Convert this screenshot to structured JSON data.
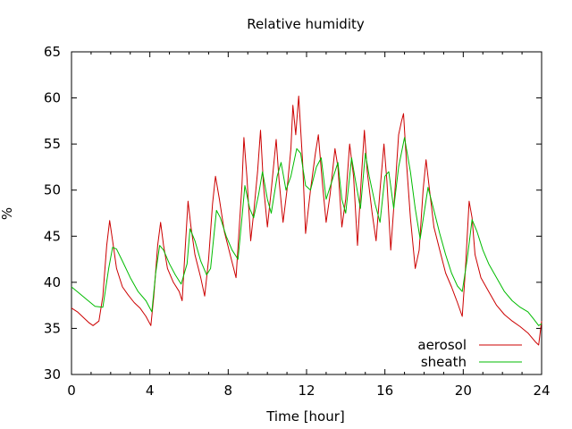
{
  "chart_data": {
    "type": "line",
    "title": "Relative humidity",
    "xlabel": "Time [hour]",
    "ylabel": "%",
    "xlim": [
      0,
      24
    ],
    "ylim": [
      30,
      65
    ],
    "xticks": [
      0,
      4,
      8,
      12,
      16,
      20,
      24
    ],
    "yticks": [
      30,
      35,
      40,
      45,
      50,
      55,
      60,
      65
    ],
    "grid": false,
    "legend_position": "bottom-right",
    "series": [
      {
        "name": "aerosol",
        "color": "#cc0000",
        "points": [
          [
            0,
            37.2
          ],
          [
            0.3,
            36.8
          ],
          [
            0.6,
            36.2
          ],
          [
            0.9,
            35.6
          ],
          [
            1.1,
            35.3
          ],
          [
            1.4,
            35.8
          ],
          [
            1.6,
            38.5
          ],
          [
            1.8,
            44.0
          ],
          [
            1.95,
            46.7
          ],
          [
            2.1,
            44.5
          ],
          [
            2.3,
            41.5
          ],
          [
            2.6,
            39.5
          ],
          [
            2.9,
            38.6
          ],
          [
            3.2,
            37.8
          ],
          [
            3.5,
            37.2
          ],
          [
            3.8,
            36.3
          ],
          [
            4.05,
            35.3
          ],
          [
            4.2,
            38.5
          ],
          [
            4.4,
            44.0
          ],
          [
            4.55,
            46.5
          ],
          [
            4.7,
            44.0
          ],
          [
            4.9,
            41.5
          ],
          [
            5.2,
            40.0
          ],
          [
            5.5,
            39.0
          ],
          [
            5.65,
            38.0
          ],
          [
            5.8,
            43.5
          ],
          [
            5.95,
            48.8
          ],
          [
            6.1,
            46.0
          ],
          [
            6.3,
            43.0
          ],
          [
            6.6,
            40.5
          ],
          [
            6.8,
            38.5
          ],
          [
            7.0,
            42.5
          ],
          [
            7.2,
            48.5
          ],
          [
            7.35,
            51.5
          ],
          [
            7.55,
            49.0
          ],
          [
            7.8,
            45.5
          ],
          [
            8.1,
            43.0
          ],
          [
            8.4,
            40.5
          ],
          [
            8.55,
            45.5
          ],
          [
            8.7,
            50.5
          ],
          [
            8.8,
            55.7
          ],
          [
            8.95,
            51.5
          ],
          [
            9.15,
            44.5
          ],
          [
            9.3,
            47.5
          ],
          [
            9.5,
            52.0
          ],
          [
            9.65,
            56.5
          ],
          [
            9.8,
            50.5
          ],
          [
            10.0,
            46.0
          ],
          [
            10.2,
            50.0
          ],
          [
            10.45,
            55.5
          ],
          [
            10.6,
            51.0
          ],
          [
            10.8,
            46.5
          ],
          [
            11.0,
            50.0
          ],
          [
            11.2,
            54.5
          ],
          [
            11.3,
            59.2
          ],
          [
            11.45,
            56.0
          ],
          [
            11.6,
            60.2
          ],
          [
            11.8,
            53.0
          ],
          [
            11.95,
            45.3
          ],
          [
            12.2,
            50.0
          ],
          [
            12.45,
            54.0
          ],
          [
            12.6,
            56.0
          ],
          [
            12.8,
            51.0
          ],
          [
            13.0,
            46.5
          ],
          [
            13.2,
            49.5
          ],
          [
            13.45,
            54.5
          ],
          [
            13.6,
            52.5
          ],
          [
            13.8,
            46.0
          ],
          [
            14.0,
            49.0
          ],
          [
            14.2,
            55.0
          ],
          [
            14.4,
            51.5
          ],
          [
            14.6,
            44.0
          ],
          [
            14.8,
            51.5
          ],
          [
            14.95,
            56.5
          ],
          [
            15.1,
            52.0
          ],
          [
            15.35,
            47.5
          ],
          [
            15.55,
            44.5
          ],
          [
            15.75,
            50.0
          ],
          [
            15.95,
            55.0
          ],
          [
            16.1,
            51.0
          ],
          [
            16.3,
            43.5
          ],
          [
            16.5,
            49.5
          ],
          [
            16.7,
            56.0
          ],
          [
            16.85,
            57.5
          ],
          [
            16.95,
            58.3
          ],
          [
            17.1,
            53.0
          ],
          [
            17.3,
            47.0
          ],
          [
            17.55,
            41.5
          ],
          [
            17.75,
            43.5
          ],
          [
            17.95,
            50.0
          ],
          [
            18.1,
            53.3
          ],
          [
            18.25,
            50.5
          ],
          [
            18.5,
            46.0
          ],
          [
            18.8,
            43.5
          ],
          [
            19.1,
            41.0
          ],
          [
            19.4,
            39.5
          ],
          [
            19.7,
            37.8
          ],
          [
            19.95,
            36.3
          ],
          [
            20.1,
            41.0
          ],
          [
            20.3,
            48.8
          ],
          [
            20.45,
            47.0
          ],
          [
            20.6,
            43.0
          ],
          [
            20.9,
            40.5
          ],
          [
            21.3,
            39.0
          ],
          [
            21.7,
            37.5
          ],
          [
            22.1,
            36.5
          ],
          [
            22.5,
            35.8
          ],
          [
            22.9,
            35.2
          ],
          [
            23.3,
            34.5
          ],
          [
            23.7,
            33.5
          ],
          [
            23.85,
            33.2
          ],
          [
            24,
            35.8
          ]
        ]
      },
      {
        "name": "sheath",
        "color": "#00bb00",
        "points": [
          [
            0,
            39.5
          ],
          [
            0.4,
            38.8
          ],
          [
            0.8,
            38.1
          ],
          [
            1.2,
            37.4
          ],
          [
            1.6,
            37.3
          ],
          [
            1.9,
            41.5
          ],
          [
            2.1,
            43.8
          ],
          [
            2.3,
            43.6
          ],
          [
            2.6,
            42.3
          ],
          [
            3.0,
            40.5
          ],
          [
            3.4,
            39.0
          ],
          [
            3.8,
            38.0
          ],
          [
            4.1,
            36.8
          ],
          [
            4.3,
            41.0
          ],
          [
            4.5,
            44.0
          ],
          [
            4.7,
            43.5
          ],
          [
            5.0,
            42.0
          ],
          [
            5.3,
            40.8
          ],
          [
            5.6,
            39.8
          ],
          [
            5.9,
            42.0
          ],
          [
            6.05,
            45.8
          ],
          [
            6.3,
            44.5
          ],
          [
            6.6,
            42.3
          ],
          [
            6.9,
            40.8
          ],
          [
            7.1,
            41.5
          ],
          [
            7.4,
            47.8
          ],
          [
            7.6,
            47.0
          ],
          [
            7.9,
            45.0
          ],
          [
            8.2,
            43.5
          ],
          [
            8.5,
            42.5
          ],
          [
            8.7,
            47.0
          ],
          [
            8.85,
            50.5
          ],
          [
            9.1,
            48.0
          ],
          [
            9.3,
            47.0
          ],
          [
            9.55,
            49.5
          ],
          [
            9.75,
            52.0
          ],
          [
            10.0,
            49.0
          ],
          [
            10.2,
            47.5
          ],
          [
            10.5,
            51.5
          ],
          [
            10.7,
            53.0
          ],
          [
            10.95,
            50.0
          ],
          [
            11.2,
            51.5
          ],
          [
            11.5,
            54.5
          ],
          [
            11.7,
            54.0
          ],
          [
            11.95,
            50.5
          ],
          [
            12.2,
            50.0
          ],
          [
            12.5,
            52.5
          ],
          [
            12.75,
            53.5
          ],
          [
            13.0,
            49.0
          ],
          [
            13.3,
            51.0
          ],
          [
            13.6,
            53.0
          ],
          [
            13.8,
            49.0
          ],
          [
            14.0,
            47.5
          ],
          [
            14.3,
            53.5
          ],
          [
            14.5,
            51.0
          ],
          [
            14.75,
            48.0
          ],
          [
            15.0,
            54.0
          ],
          [
            15.2,
            51.5
          ],
          [
            15.5,
            48.5
          ],
          [
            15.75,
            46.5
          ],
          [
            16.0,
            51.5
          ],
          [
            16.2,
            52.0
          ],
          [
            16.45,
            48.0
          ],
          [
            16.7,
            52.5
          ],
          [
            17.0,
            55.7
          ],
          [
            17.3,
            52.0
          ],
          [
            17.55,
            48.0
          ],
          [
            17.8,
            44.7
          ],
          [
            18.0,
            47.5
          ],
          [
            18.2,
            50.3
          ],
          [
            18.5,
            47.8
          ],
          [
            18.8,
            45.3
          ],
          [
            19.1,
            43.0
          ],
          [
            19.4,
            41.0
          ],
          [
            19.7,
            39.6
          ],
          [
            19.95,
            39.0
          ],
          [
            20.2,
            42.5
          ],
          [
            20.45,
            46.8
          ],
          [
            20.7,
            45.5
          ],
          [
            21.0,
            43.5
          ],
          [
            21.3,
            42.0
          ],
          [
            21.7,
            40.5
          ],
          [
            22.1,
            39.0
          ],
          [
            22.5,
            38.0
          ],
          [
            22.9,
            37.3
          ],
          [
            23.3,
            36.8
          ],
          [
            23.6,
            36.0
          ],
          [
            23.85,
            35.3
          ],
          [
            24,
            35.5
          ]
        ]
      }
    ]
  }
}
